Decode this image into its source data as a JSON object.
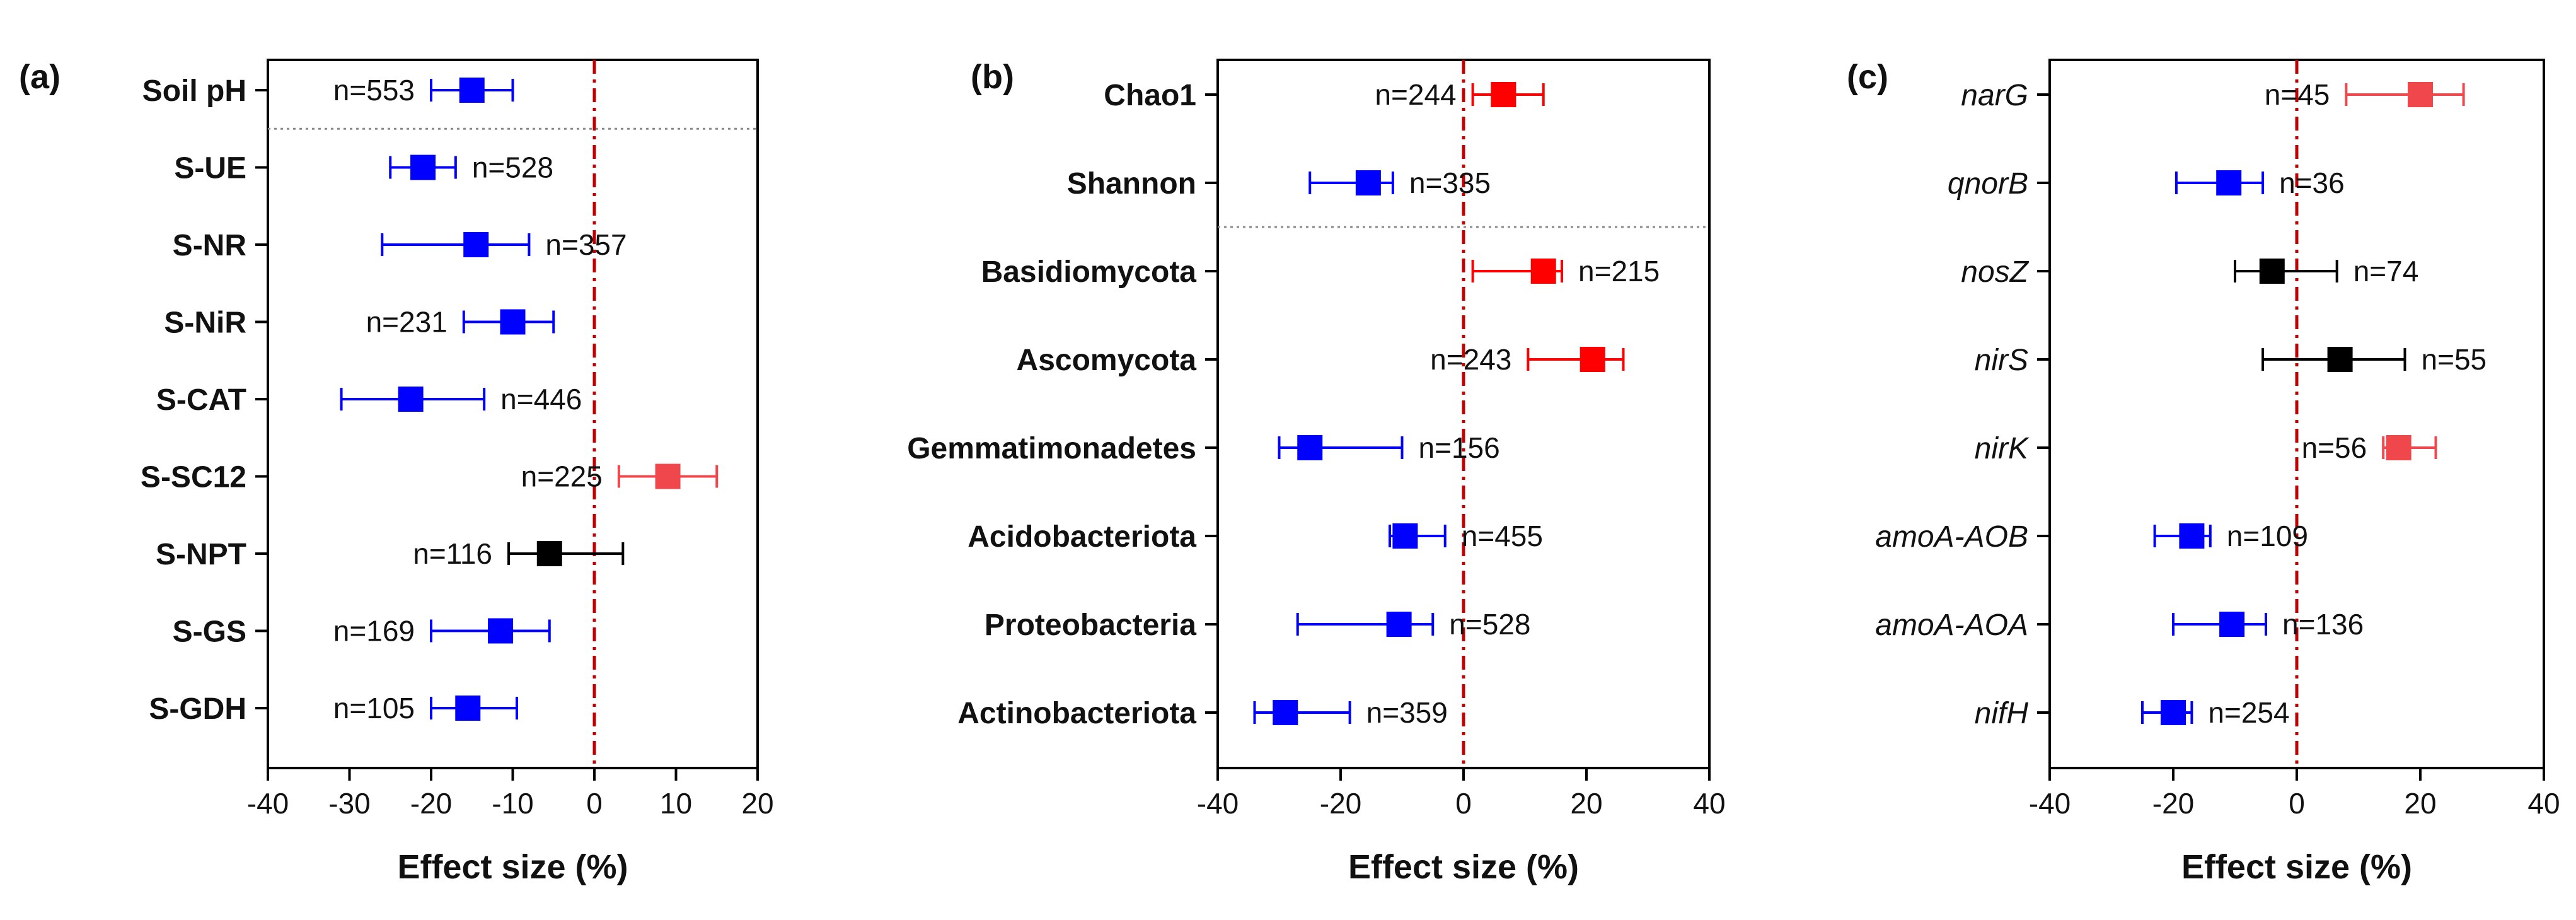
{
  "colors": {
    "decrease": "#0000ff",
    "increase_strong": "#ff0000",
    "increase_light": "#f0474c",
    "neutral": "#000000",
    "zero_line": "#c00000",
    "divider": "#8a8a8a"
  },
  "chart_data": [
    {
      "type": "forest",
      "panel_label": "(a)",
      "title": "",
      "xlabel": "Effect size (%)",
      "ylabel": "",
      "xlim": [
        -40,
        20
      ],
      "xticks": [
        "-40",
        "-30",
        "-20",
        "-10",
        "0",
        "10",
        "20"
      ],
      "italic_labels": false,
      "divider_after_index": 0,
      "rows": [
        {
          "label": "Soil pH",
          "n_text": "n=553",
          "n_position": "left",
          "mean": -15,
          "ci": [
            -20,
            -10
          ],
          "color": "decrease"
        },
        {
          "label": "S-UE",
          "n_text": "n=528",
          "n_position": "right",
          "mean": -21,
          "ci": [
            -25,
            -17
          ],
          "color": "decrease"
        },
        {
          "label": "S-NR",
          "n_text": "n=357",
          "n_position": "right",
          "mean": -14.5,
          "ci": [
            -26,
            -8
          ],
          "color": "decrease"
        },
        {
          "label": "S-NiR",
          "n_text": "n=231",
          "n_position": "left",
          "mean": -10,
          "ci": [
            -16,
            -5
          ],
          "color": "decrease"
        },
        {
          "label": "S-CAT",
          "n_text": "n=446",
          "n_position": "right",
          "mean": -22.5,
          "ci": [
            -31,
            -13.5
          ],
          "color": "decrease"
        },
        {
          "label": "S-SC12",
          "n_text": "n=225",
          "n_position": "left",
          "mean": 9,
          "ci": [
            3,
            15
          ],
          "color": "increase_light"
        },
        {
          "label": "S-NPT",
          "n_text": "n=116",
          "n_position": "left",
          "mean": -5.5,
          "ci": [
            -10.5,
            3.5
          ],
          "color": "neutral"
        },
        {
          "label": "S-GS",
          "n_text": "n=169",
          "n_position": "left",
          "mean": -11.5,
          "ci": [
            -20,
            -5.5
          ],
          "color": "decrease"
        },
        {
          "label": "S-GDH",
          "n_text": "n=105",
          "n_position": "left",
          "mean": -15.5,
          "ci": [
            -20,
            -9.5
          ],
          "color": "decrease"
        }
      ]
    },
    {
      "type": "forest",
      "panel_label": "(b)",
      "title": "",
      "xlabel": "Effect size (%)",
      "ylabel": "",
      "xlim": [
        -40,
        40
      ],
      "xticks": [
        "-40",
        "-20",
        "0",
        "20",
        "40"
      ],
      "italic_labels": false,
      "divider_after_index": 1,
      "rows": [
        {
          "label": "Chao1",
          "n_text": "n=244",
          "n_position": "left",
          "mean": 6.5,
          "ci": [
            1.5,
            13
          ],
          "color": "increase_strong"
        },
        {
          "label": "Shannon",
          "n_text": "n=335",
          "n_position": "right",
          "mean": -15.5,
          "ci": [
            -25,
            -11.5
          ],
          "color": "decrease"
        },
        {
          "label": "Basidiomycota",
          "n_text": "n=215",
          "n_position": "right",
          "mean": 13,
          "ci": [
            1.5,
            16
          ],
          "color": "increase_strong"
        },
        {
          "label": "Ascomycota",
          "n_text": "n=243",
          "n_position": "left",
          "mean": 21,
          "ci": [
            10.5,
            26
          ],
          "color": "increase_strong"
        },
        {
          "label": "Gemmatimonadetes",
          "n_text": "n=156",
          "n_position": "right",
          "mean": -25,
          "ci": [
            -30,
            -10
          ],
          "color": "decrease"
        },
        {
          "label": "Acidobacteriota",
          "n_text": "n=455",
          "n_position": "right",
          "mean": -9.5,
          "ci": [
            -12,
            -3
          ],
          "color": "decrease"
        },
        {
          "label": "Proteobacteria",
          "n_text": "n=528",
          "n_position": "right",
          "mean": -10.5,
          "ci": [
            -27,
            -5
          ],
          "color": "decrease"
        },
        {
          "label": "Actinobacteriota",
          "n_text": "n=359",
          "n_position": "right",
          "mean": -29,
          "ci": [
            -34,
            -18.5
          ],
          "color": "decrease"
        }
      ]
    },
    {
      "type": "forest",
      "panel_label": "(c)",
      "title": "",
      "xlabel": "Effect size (%)",
      "ylabel": "",
      "xlim": [
        -40,
        40
      ],
      "xticks": [
        "-40",
        "-20",
        "0",
        "20",
        "40"
      ],
      "italic_labels": true,
      "divider_after_index": -1,
      "rows": [
        {
          "label": "narG",
          "n_text": "n=45",
          "n_position": "left",
          "mean": 20,
          "ci": [
            8,
            27
          ],
          "color": "increase_light"
        },
        {
          "label": "qnorB",
          "n_text": "n=36",
          "n_position": "right",
          "mean": -11,
          "ci": [
            -19.5,
            -5.5
          ],
          "color": "decrease"
        },
        {
          "label": "nosZ",
          "n_text": "n=74",
          "n_position": "right",
          "mean": -4,
          "ci": [
            -10,
            6.5
          ],
          "color": "neutral"
        },
        {
          "label": "nirS",
          "n_text": "n=55",
          "n_position": "right",
          "mean": 7,
          "ci": [
            -5.5,
            17.5
          ],
          "color": "neutral"
        },
        {
          "label": "nirK",
          "n_text": "n=56",
          "n_position": "left",
          "mean": 16.5,
          "ci": [
            14,
            22.5
          ],
          "color": "increase_light"
        },
        {
          "label": "amoA-AOB",
          "n_text": "n=109",
          "n_position": "right",
          "mean": -17,
          "ci": [
            -23,
            -14
          ],
          "color": "decrease"
        },
        {
          "label": "amoA-AOA",
          "n_text": "n=136",
          "n_position": "right",
          "mean": -10.5,
          "ci": [
            -20,
            -5
          ],
          "color": "decrease"
        },
        {
          "label": "nifH",
          "n_text": "n=254",
          "n_position": "right",
          "mean": -20,
          "ci": [
            -25,
            -17
          ],
          "color": "decrease"
        }
      ]
    }
  ]
}
